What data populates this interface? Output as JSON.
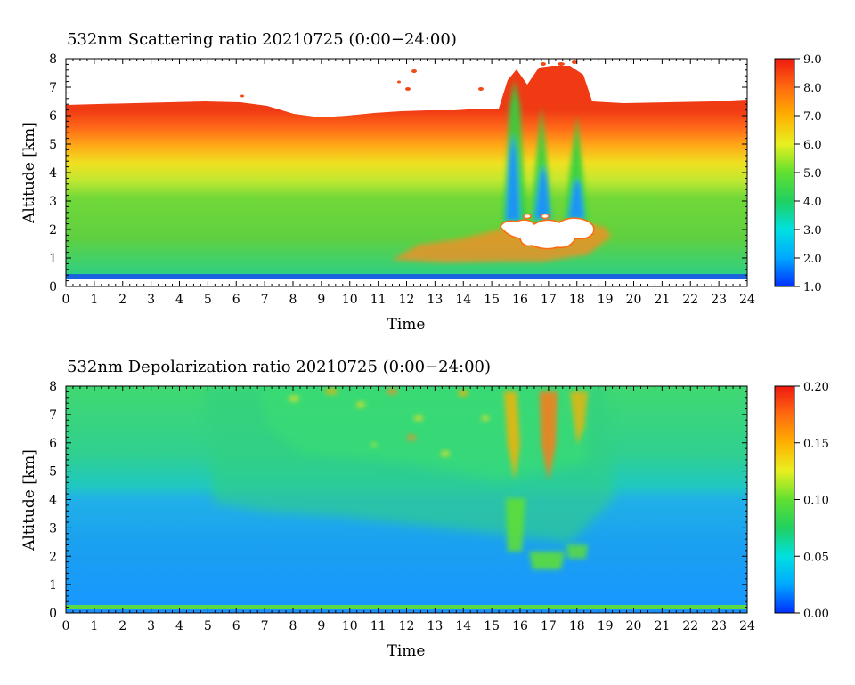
{
  "chart_data": [
    {
      "type": "heatmap",
      "title": "532nm Scattering ratio  20210725 (0:00−24:00)",
      "xlabel": "Time",
      "ylabel": "Altitude [km]",
      "xlim": [
        0,
        24
      ],
      "ylim": [
        0,
        8
      ],
      "xticks": [
        "0",
        "1",
        "2",
        "3",
        "4",
        "5",
        "6",
        "7",
        "8",
        "9",
        "10",
        "11",
        "12",
        "13",
        "14",
        "15",
        "16",
        "17",
        "18",
        "19",
        "20",
        "21",
        "22",
        "23",
        "24"
      ],
      "yticks": [
        "0",
        "1",
        "2",
        "3",
        "4",
        "5",
        "6",
        "7",
        "8"
      ],
      "colorbar": {
        "range": [
          1.0,
          9.0
        ],
        "ticks": [
          "1.0",
          "2.0",
          "3.0",
          "4.0",
          "5.0",
          "6.0",
          "7.0",
          "8.0",
          "9.0"
        ],
        "colors": [
          "#0030ff",
          "#00a8ff",
          "#00e0e0",
          "#20d060",
          "#60e030",
          "#e8f020",
          "#ffb000",
          "#ff6a10",
          "#ee1a10"
        ]
      }
    },
    {
      "type": "heatmap",
      "title": "532nm Depolarization ratio  20210725 (0:00−24:00)",
      "xlabel": "Time",
      "ylabel": "Altitude [km]",
      "xlim": [
        0,
        24
      ],
      "ylim": [
        0,
        8
      ],
      "xticks": [
        "0",
        "1",
        "2",
        "3",
        "4",
        "5",
        "6",
        "7",
        "8",
        "9",
        "10",
        "11",
        "12",
        "13",
        "14",
        "15",
        "16",
        "17",
        "18",
        "19",
        "20",
        "21",
        "22",
        "23",
        "24"
      ],
      "yticks": [
        "0",
        "1",
        "2",
        "3",
        "4",
        "5",
        "6",
        "7",
        "8"
      ],
      "colorbar": {
        "range": [
          0.0,
          0.2
        ],
        "ticks": [
          "0.00",
          "0.05",
          "0.10",
          "0.15",
          "0.20"
        ],
        "colors": [
          "#0030ff",
          "#00a8ff",
          "#00e0e0",
          "#20d060",
          "#60e030",
          "#e8f020",
          "#ffb000",
          "#ff6a10",
          "#ee1a10"
        ]
      }
    }
  ]
}
